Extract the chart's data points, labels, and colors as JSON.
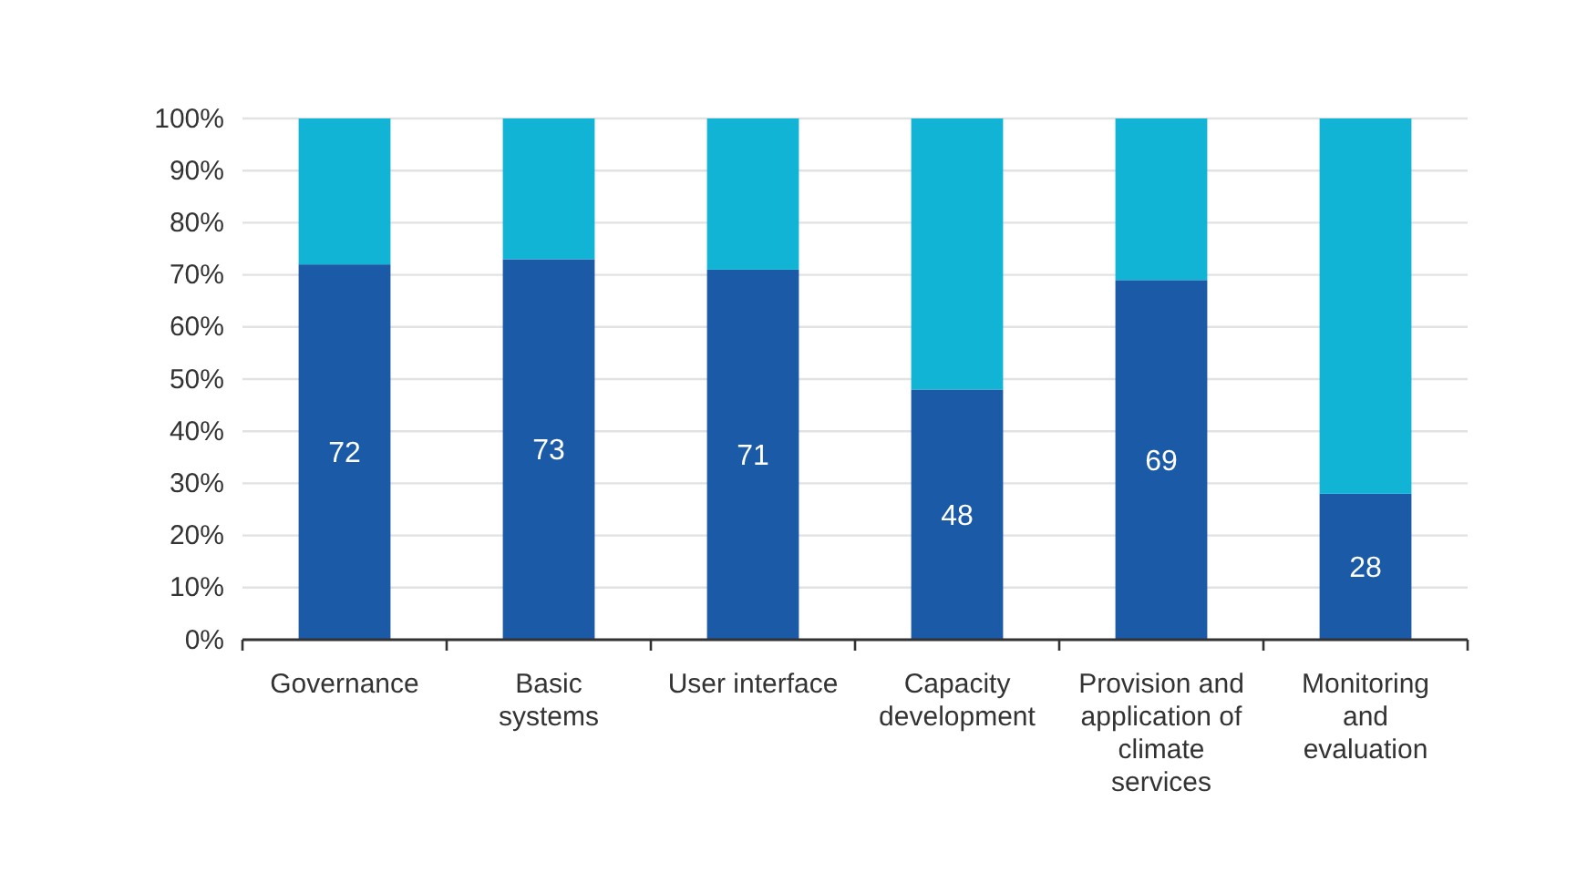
{
  "chart_data": {
    "type": "bar",
    "stacked": true,
    "categories": [
      "Governance",
      "Basic systems",
      "User interface",
      "Capacity development",
      "Provision and application of climate services",
      "Monitoring and evaluation"
    ],
    "series": [
      {
        "color": "#1a5aa6",
        "values": [
          72,
          73,
          71,
          48,
          69,
          28
        ],
        "value_labels": [
          "72",
          "73",
          "71",
          "48",
          "69",
          "28"
        ]
      },
      {
        "color": "#12b4d6",
        "values": [
          28,
          27,
          29,
          52,
          31,
          72
        ]
      }
    ],
    "ylim": [
      0,
      100
    ],
    "yticks": [
      {
        "value": 0,
        "label": "0%"
      },
      {
        "value": 10,
        "label": "10%"
      },
      {
        "value": 20,
        "label": "20%"
      },
      {
        "value": 30,
        "label": "30%"
      },
      {
        "value": 40,
        "label": "40%"
      },
      {
        "value": 50,
        "label": "50%"
      },
      {
        "value": 60,
        "label": "60%"
      },
      {
        "value": 70,
        "label": "70%"
      },
      {
        "value": 80,
        "label": "80%"
      },
      {
        "value": 90,
        "label": "90%"
      },
      {
        "value": 100,
        "label": "100%"
      }
    ],
    "grid": "y"
  }
}
